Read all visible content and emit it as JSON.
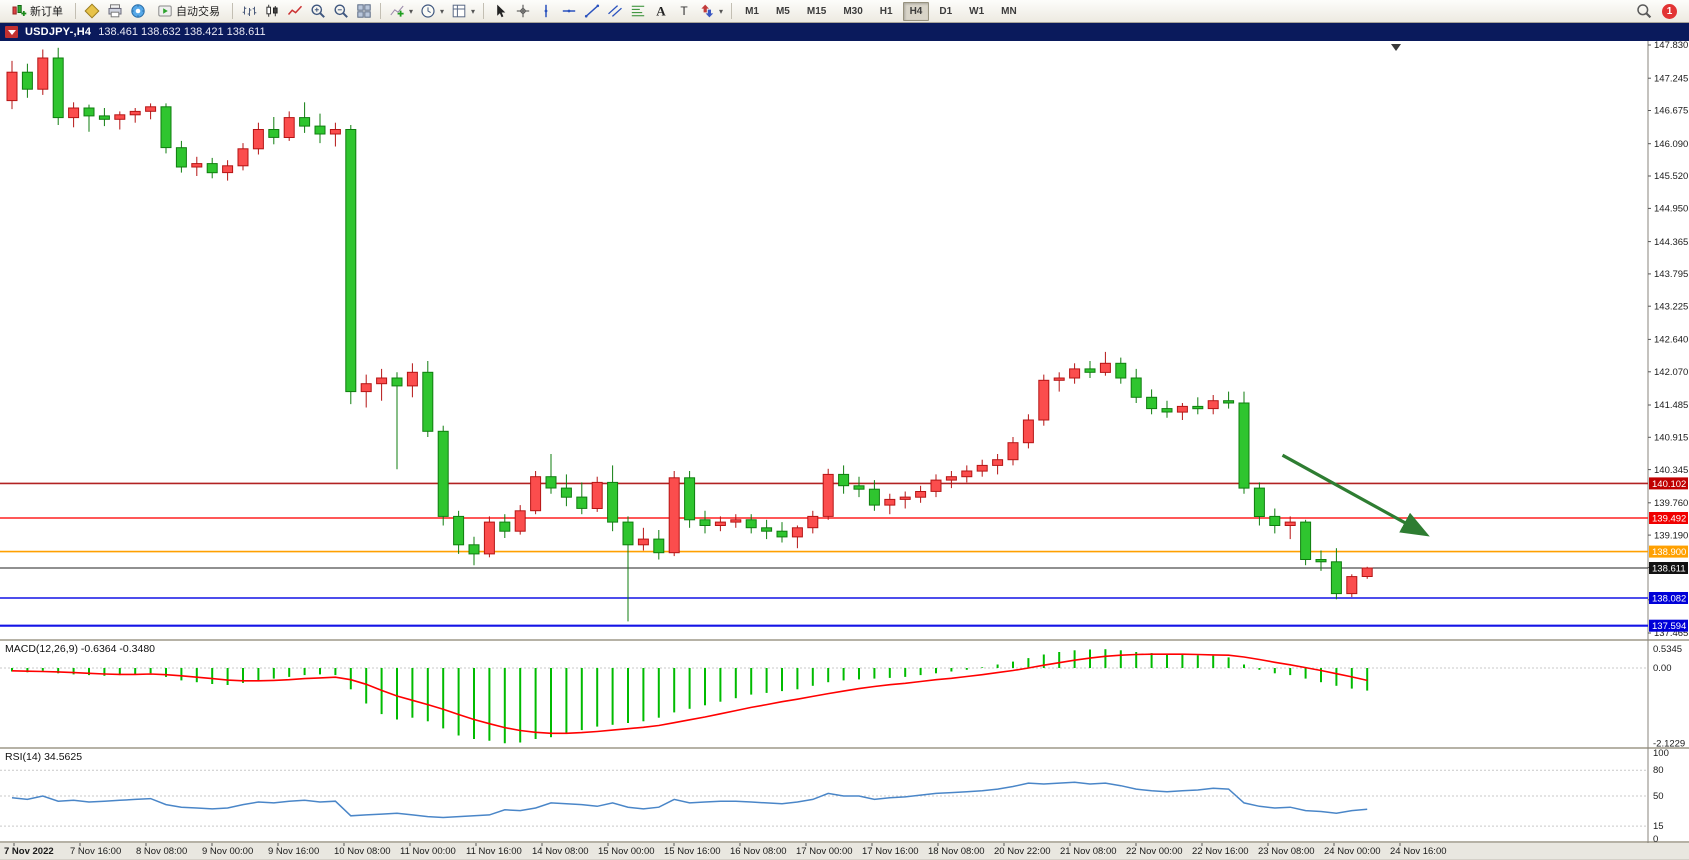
{
  "window": {
    "symbol_period": "USDJPY-,H4",
    "quote": "138.461 138.632 138.421 138.611"
  },
  "toolbar": {
    "items": [
      {
        "name": "new-order-button",
        "icon": "new-order",
        "label": "新订单"
      },
      {
        "type": "sep"
      },
      {
        "name": "charts-button",
        "icon": "charts"
      },
      {
        "name": "print-button",
        "icon": "print"
      },
      {
        "name": "community-button",
        "icon": "community"
      },
      {
        "name": "auto-trading-button",
        "icon": "autotrade",
        "label": "自动交易"
      },
      {
        "type": "sep"
      },
      {
        "name": "bar-chart-button",
        "icon": "bars"
      },
      {
        "name": "candlestick-chart-button",
        "icon": "candles"
      },
      {
        "name": "line-chart-button",
        "icon": "line"
      },
      {
        "name": "zoom-in-button",
        "icon": "zoom-in"
      },
      {
        "name": "zoom-out-button",
        "icon": "zoom-out"
      },
      {
        "name": "tile-windows-button",
        "icon": "tiles"
      },
      {
        "type": "sep"
      },
      {
        "name": "indicators-button",
        "icon": "indicators",
        "caret": true
      },
      {
        "name": "periods-button",
        "icon": "clock",
        "caret": true
      },
      {
        "name": "templates-button",
        "icon": "template",
        "caret": true
      },
      {
        "type": "sep"
      },
      {
        "name": "cursor-button",
        "icon": "cursor"
      },
      {
        "name": "crosshair-button",
        "icon": "crosshair"
      },
      {
        "name": "vertical-line-button",
        "icon": "vline"
      },
      {
        "name": "horizontal-line-button",
        "icon": "hline"
      },
      {
        "name": "trendline-button",
        "icon": "tline"
      },
      {
        "name": "channel-button",
        "icon": "channel"
      },
      {
        "name": "fibonacci-button",
        "icon": "fibo"
      },
      {
        "name": "text-button",
        "icon": "text"
      },
      {
        "name": "text-label-button",
        "icon": "label"
      },
      {
        "name": "arrows-button",
        "icon": "arrows",
        "caret": true
      },
      {
        "type": "sep"
      }
    ],
    "timeframes": [
      "M1",
      "M5",
      "M15",
      "M30",
      "H1",
      "H4",
      "D1",
      "W1",
      "MN"
    ],
    "active_timeframe": "H4",
    "notification_count": "1"
  },
  "chart_data": {
    "type": "candlestick",
    "symbol": "USDJPY-",
    "period": "H4",
    "quote": {
      "open": "138.461",
      "high": "138.632",
      "low": "138.421",
      "close": "138.611"
    },
    "up_color": "#fb4d4d",
    "up_stroke": "#b51414",
    "down_color": "#2fc52f",
    "down_stroke": "#0f7d0f",
    "y_axis": {
      "labels": [
        "147.830",
        "147.245",
        "146.675",
        "146.090",
        "145.520",
        "144.950",
        "144.365",
        "143.795",
        "143.225",
        "142.640",
        "142.070",
        "141.485",
        "140.915",
        "140.345",
        "139.760",
        "139.190",
        "138.620",
        "138.050",
        "137.465"
      ]
    },
    "x_labels": [
      "7 Nov 2022",
      "7 Nov 16:00",
      "8 Nov 08:00",
      "9 Nov 00:00",
      "9 Nov 16:00",
      "10 Nov 08:00",
      "11 Nov 00:00",
      "11 Nov 16:00",
      "14 Nov 08:00",
      "15 Nov 00:00",
      "15 Nov 16:00",
      "16 Nov 08:00",
      "17 Nov 00:00",
      "17 Nov 16:00",
      "18 Nov 08:00",
      "20 Nov 22:00",
      "21 Nov 08:00",
      "22 Nov 00:00",
      "22 Nov 16:00",
      "23 Nov 08:00",
      "24 Nov 00:00",
      "24 Nov 16:00"
    ],
    "candles": [
      [
        146.85,
        147.55,
        146.7,
        147.35
      ],
      [
        147.35,
        147.5,
        146.9,
        147.05
      ],
      [
        147.05,
        147.75,
        146.95,
        147.6
      ],
      [
        147.6,
        147.78,
        146.42,
        146.55
      ],
      [
        146.55,
        146.82,
        146.38,
        146.72
      ],
      [
        146.72,
        146.78,
        146.3,
        146.58
      ],
      [
        146.58,
        146.72,
        146.4,
        146.52
      ],
      [
        146.52,
        146.66,
        146.34,
        146.6
      ],
      [
        146.6,
        146.72,
        146.46,
        146.66
      ],
      [
        146.66,
        146.8,
        146.52,
        146.74
      ],
      [
        146.74,
        146.8,
        145.92,
        146.02
      ],
      [
        146.02,
        146.14,
        145.58,
        145.68
      ],
      [
        145.68,
        145.86,
        145.52,
        145.74
      ],
      [
        145.74,
        145.84,
        145.48,
        145.58
      ],
      [
        145.58,
        145.8,
        145.44,
        145.7
      ],
      [
        145.7,
        146.1,
        145.62,
        146.0
      ],
      [
        146.0,
        146.46,
        145.9,
        146.34
      ],
      [
        146.34,
        146.56,
        146.08,
        146.2
      ],
      [
        146.2,
        146.66,
        146.14,
        146.55
      ],
      [
        146.55,
        146.82,
        146.28,
        146.4
      ],
      [
        146.4,
        146.62,
        146.1,
        146.26
      ],
      [
        146.26,
        146.46,
        146.04,
        146.34
      ],
      [
        146.34,
        146.42,
        141.5,
        141.72
      ],
      [
        141.72,
        142.02,
        141.44,
        141.86
      ],
      [
        141.86,
        142.12,
        141.56,
        141.96
      ],
      [
        141.96,
        142.06,
        140.35,
        141.82
      ],
      [
        141.82,
        142.22,
        141.62,
        142.06
      ],
      [
        142.06,
        142.26,
        140.92,
        141.02
      ],
      [
        141.02,
        141.12,
        139.36,
        139.52
      ],
      [
        139.52,
        139.62,
        138.86,
        139.02
      ],
      [
        139.02,
        139.16,
        138.66,
        138.86
      ],
      [
        138.86,
        139.52,
        138.8,
        139.42
      ],
      [
        139.42,
        139.56,
        139.14,
        139.26
      ],
      [
        139.26,
        139.72,
        139.2,
        139.62
      ],
      [
        139.62,
        140.32,
        139.56,
        140.22
      ],
      [
        140.22,
        140.62,
        139.92,
        140.02
      ],
      [
        140.02,
        140.26,
        139.7,
        139.86
      ],
      [
        139.86,
        140.12,
        139.56,
        139.66
      ],
      [
        139.66,
        140.22,
        139.6,
        140.12
      ],
      [
        140.12,
        140.42,
        139.26,
        139.42
      ],
      [
        139.42,
        139.52,
        137.67,
        139.02
      ],
      [
        139.02,
        139.32,
        138.92,
        139.12
      ],
      [
        139.12,
        139.28,
        138.76,
        138.88
      ],
      [
        138.88,
        140.32,
        138.82,
        140.2
      ],
      [
        140.2,
        140.32,
        139.32,
        139.46
      ],
      [
        139.46,
        139.62,
        139.22,
        139.36
      ],
      [
        139.36,
        139.52,
        139.26,
        139.42
      ],
      [
        139.42,
        139.56,
        139.32,
        139.46
      ],
      [
        139.46,
        139.56,
        139.22,
        139.32
      ],
      [
        139.32,
        139.46,
        139.12,
        139.26
      ],
      [
        139.26,
        139.42,
        139.06,
        139.16
      ],
      [
        139.16,
        139.36,
        138.96,
        139.32
      ],
      [
        139.32,
        139.62,
        139.22,
        139.52
      ],
      [
        139.52,
        140.36,
        139.46,
        140.26
      ],
      [
        140.26,
        140.42,
        139.92,
        140.06
      ],
      [
        140.06,
        140.22,
        139.86,
        140.0
      ],
      [
        140.0,
        140.16,
        139.62,
        139.72
      ],
      [
        139.72,
        139.92,
        139.56,
        139.82
      ],
      [
        139.82,
        139.96,
        139.66,
        139.86
      ],
      [
        139.86,
        140.06,
        139.76,
        139.96
      ],
      [
        139.96,
        140.26,
        139.86,
        140.16
      ],
      [
        140.16,
        140.32,
        140.02,
        140.22
      ],
      [
        140.22,
        140.42,
        140.12,
        140.32
      ],
      [
        140.32,
        140.52,
        140.22,
        140.42
      ],
      [
        140.42,
        140.62,
        140.26,
        140.52
      ],
      [
        140.52,
        140.92,
        140.42,
        140.82
      ],
      [
        140.82,
        141.32,
        140.72,
        141.22
      ],
      [
        141.22,
        142.02,
        141.12,
        141.92
      ],
      [
        141.92,
        142.06,
        141.72,
        141.96
      ],
      [
        141.96,
        142.22,
        141.86,
        142.12
      ],
      [
        142.12,
        142.26,
        141.96,
        142.06
      ],
      [
        142.06,
        142.42,
        142.0,
        142.22
      ],
      [
        142.22,
        142.32,
        141.86,
        141.96
      ],
      [
        141.96,
        142.12,
        141.52,
        141.62
      ],
      [
        141.62,
        141.76,
        141.32,
        141.42
      ],
      [
        141.42,
        141.56,
        141.26,
        141.36
      ],
      [
        141.36,
        141.52,
        141.22,
        141.46
      ],
      [
        141.46,
        141.62,
        141.32,
        141.42
      ],
      [
        141.42,
        141.66,
        141.32,
        141.56
      ],
      [
        141.56,
        141.72,
        141.42,
        141.52
      ],
      [
        141.52,
        141.72,
        139.92,
        140.02
      ],
      [
        140.02,
        140.12,
        139.36,
        139.52
      ],
      [
        139.52,
        139.66,
        139.22,
        139.36
      ],
      [
        139.36,
        139.52,
        139.12,
        139.42
      ],
      [
        139.42,
        139.46,
        138.66,
        138.76
      ],
      [
        138.76,
        138.92,
        138.56,
        138.72
      ],
      [
        138.72,
        138.96,
        138.06,
        138.16
      ],
      [
        138.16,
        138.5,
        138.1,
        138.46
      ],
      [
        138.461,
        138.632,
        138.421,
        138.611
      ]
    ],
    "hlines": [
      {
        "price": 140.102,
        "color": "#b22222",
        "width": 1.6,
        "label": "140.102",
        "label_bg": "#c00000"
      },
      {
        "price": 139.492,
        "color": "#ff2020",
        "width": 1.6,
        "label": "139.492",
        "label_bg": "#f00000"
      },
      {
        "price": 138.9,
        "color": "#ffa000",
        "width": 1.6,
        "label": "138.900",
        "label_bg": "#ffa000"
      },
      {
        "price": 138.611,
        "color": "#222222",
        "width": 1.0,
        "label": "138.611",
        "label_bg": "#111111"
      },
      {
        "price": 138.082,
        "color": "#1414e6",
        "width": 1.6,
        "label": "138.082",
        "label_bg": "#0000d8"
      },
      {
        "price": 137.594,
        "color": "#1414e6",
        "width": 2.2,
        "label": "137.594",
        "label_bg": "#0000d8"
      }
    ],
    "arrow": {
      "from_index": 82.5,
      "from_price": 140.6,
      "to_index": 91.7,
      "to_price": 139.22,
      "color": "#2e7d32"
    },
    "macd": {
      "label": "MACD(12,26,9) -0.6364 -0.3480",
      "color": "#00bb00",
      "signal_color": "#ff0000",
      "scale": [
        "0.5345",
        "0.00",
        "-2.1229"
      ],
      "histogram": [
        -0.1,
        -0.12,
        -0.08,
        -0.15,
        -0.18,
        -0.2,
        -0.22,
        -0.2,
        -0.18,
        -0.15,
        -0.25,
        -0.35,
        -0.4,
        -0.45,
        -0.48,
        -0.42,
        -0.35,
        -0.3,
        -0.25,
        -0.2,
        -0.18,
        -0.2,
        -0.6,
        -1.0,
        -1.3,
        -1.45,
        -1.4,
        -1.5,
        -1.7,
        -1.9,
        -2.0,
        -2.05,
        -2.12,
        -2.1,
        -2.0,
        -1.95,
        -1.85,
        -1.75,
        -1.65,
        -1.6,
        -1.55,
        -1.5,
        -1.4,
        -1.25,
        -1.15,
        -1.05,
        -0.95,
        -0.85,
        -0.75,
        -0.7,
        -0.65,
        -0.6,
        -0.5,
        -0.4,
        -0.35,
        -0.32,
        -0.3,
        -0.28,
        -0.25,
        -0.2,
        -0.15,
        -0.1,
        -0.05,
        0.02,
        0.1,
        0.18,
        0.28,
        0.38,
        0.45,
        0.5,
        0.52,
        0.53,
        0.5,
        0.45,
        0.42,
        0.4,
        0.38,
        0.36,
        0.35,
        0.3,
        0.1,
        -0.05,
        -0.15,
        -0.2,
        -0.3,
        -0.4,
        -0.5,
        -0.58,
        -0.6364
      ],
      "signal": [
        -0.08,
        -0.09,
        -0.1,
        -0.11,
        -0.13,
        -0.15,
        -0.17,
        -0.18,
        -0.18,
        -0.17,
        -0.19,
        -0.22,
        -0.26,
        -0.3,
        -0.34,
        -0.36,
        -0.36,
        -0.35,
        -0.33,
        -0.3,
        -0.28,
        -0.26,
        -0.33,
        -0.46,
        -0.63,
        -0.79,
        -0.91,
        -1.03,
        -1.16,
        -1.31,
        -1.45,
        -1.57,
        -1.68,
        -1.76,
        -1.81,
        -1.84,
        -1.84,
        -1.82,
        -1.79,
        -1.75,
        -1.71,
        -1.67,
        -1.62,
        -1.54,
        -1.46,
        -1.38,
        -1.29,
        -1.2,
        -1.11,
        -1.03,
        -0.95,
        -0.88,
        -0.8,
        -0.72,
        -0.65,
        -0.58,
        -0.52,
        -0.47,
        -0.43,
        -0.38,
        -0.33,
        -0.29,
        -0.24,
        -0.19,
        -0.13,
        -0.07,
        0.0,
        0.08,
        0.15,
        0.22,
        0.28,
        0.33,
        0.36,
        0.38,
        0.39,
        0.39,
        0.39,
        0.38,
        0.37,
        0.36,
        0.31,
        0.24,
        0.16,
        0.09,
        0.01,
        -0.07,
        -0.16,
        -0.25,
        -0.348
      ]
    },
    "rsi": {
      "label": "RSI(14) 34.5625",
      "color": "#4a86c8",
      "scale": [
        "100",
        "80",
        "50",
        "15",
        "0"
      ],
      "levels": [
        80,
        50,
        15
      ],
      "values": [
        48,
        46,
        50,
        44,
        45,
        43,
        44,
        45,
        46,
        47,
        40,
        37,
        36,
        35,
        36,
        40,
        43,
        42,
        44,
        45,
        43,
        44,
        27,
        28,
        29,
        30,
        28,
        26,
        25,
        26,
        27,
        28,
        34,
        33,
        36,
        42,
        41,
        40,
        38,
        42,
        37,
        35,
        37,
        46,
        42,
        43,
        44,
        44,
        43,
        42,
        41,
        43,
        46,
        53,
        50,
        50,
        46,
        48,
        49,
        51,
        53,
        54,
        55,
        56,
        58,
        61,
        65,
        64,
        65,
        66,
        64,
        65,
        62,
        58,
        56,
        55,
        56,
        57,
        59,
        58,
        42,
        38,
        36,
        37,
        33,
        32,
        30,
        33,
        34.56
      ]
    }
  }
}
